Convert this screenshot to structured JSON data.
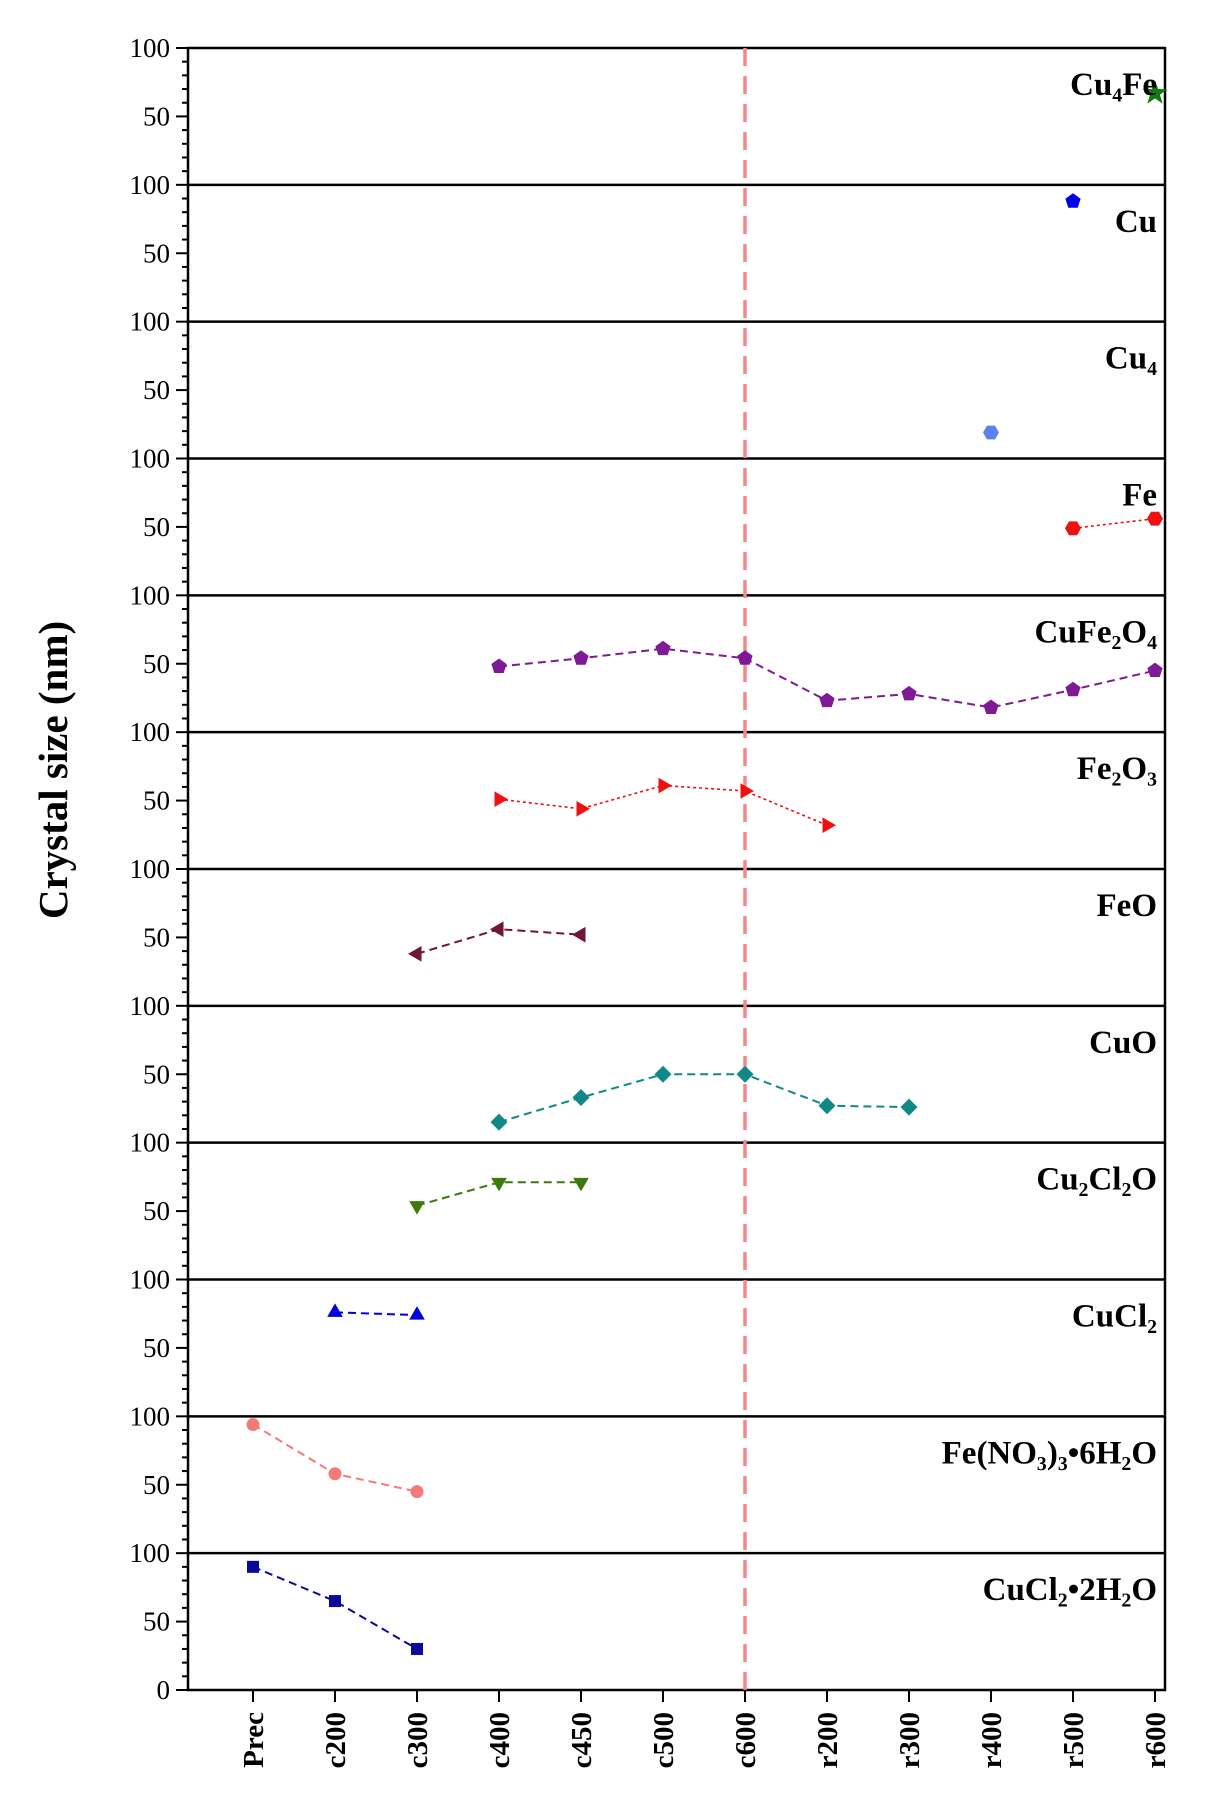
{
  "chart_data": {
    "type": "line",
    "title": "",
    "xlabel": "",
    "ylabel": "Crystal size (nm)",
    "categories": [
      "Prec",
      "c200",
      "c300",
      "c400",
      "c450",
      "c500",
      "c600",
      "r200",
      "r300",
      "r400",
      "r500",
      "r600"
    ],
    "panel_ylim": [
      0,
      100
    ],
    "panel_ticks": [
      50,
      100
    ],
    "bottom_tick": "0",
    "reference_line": {
      "category": "c600",
      "color": "#f4878a"
    },
    "series": [
      {
        "name": "Cu4Fe",
        "label": "Cu₄Fe",
        "color": "#0f7a0f",
        "marker": "star",
        "dash": "none",
        "points": [
          [
            "r600",
            67
          ]
        ]
      },
      {
        "name": "Cu",
        "label": "Cu",
        "color": "#0000ee",
        "marker": "pentagon",
        "dash": "none",
        "points": [
          [
            "r500",
            88
          ]
        ]
      },
      {
        "name": "Cu4",
        "label": "Cu₄",
        "color": "#5b82f0",
        "marker": "hexagon",
        "dash": "none",
        "points": [
          [
            "r400",
            19
          ]
        ]
      },
      {
        "name": "Fe",
        "label": "Fe",
        "color": "#ee1111",
        "marker": "hexagon",
        "dash": "dot",
        "points": [
          [
            "r500",
            49
          ],
          [
            "r600",
            56
          ]
        ]
      },
      {
        "name": "CuFe2O4",
        "label": "CuFe₂O₄",
        "color": "#7f1a96",
        "marker": "pentagon",
        "dash": "dash",
        "points": [
          [
            "c400",
            48
          ],
          [
            "c450",
            54
          ],
          [
            "c500",
            61
          ],
          [
            "c600",
            54
          ],
          [
            "r200",
            23
          ],
          [
            "r300",
            28
          ],
          [
            "r400",
            18
          ],
          [
            "r500",
            31
          ],
          [
            "r600",
            45
          ]
        ]
      },
      {
        "name": "Fe2O3",
        "label": "Fe₂O₃",
        "color": "#ee1111",
        "marker": "tri-right",
        "dash": "dot",
        "points": [
          [
            "c400",
            51
          ],
          [
            "c450",
            44
          ],
          [
            "c500",
            61
          ],
          [
            "c600",
            57
          ],
          [
            "r200",
            32
          ]
        ]
      },
      {
        "name": "FeO",
        "label": "FeO",
        "color": "#6e1538",
        "marker": "tri-left",
        "dash": "dash",
        "points": [
          [
            "c300",
            38
          ],
          [
            "c400",
            56
          ],
          [
            "c450",
            52
          ]
        ]
      },
      {
        "name": "CuO",
        "label": "CuO",
        "color": "#118888",
        "marker": "diamond",
        "dash": "dash",
        "points": [
          [
            "c400",
            15
          ],
          [
            "c450",
            33
          ],
          [
            "c500",
            50
          ],
          [
            "c600",
            50
          ],
          [
            "r200",
            27
          ],
          [
            "r300",
            26
          ]
        ]
      },
      {
        "name": "Cu2Cl2O",
        "label": "Cu₂Cl₂O",
        "color": "#3d7a0a",
        "marker": "tri-down",
        "dash": "dash",
        "points": [
          [
            "c300",
            54
          ],
          [
            "c400",
            71
          ],
          [
            "c450",
            71
          ]
        ]
      },
      {
        "name": "CuCl2",
        "label": "CuCl₂",
        "color": "#0000dd",
        "marker": "tri-up",
        "dash": "dash",
        "points": [
          [
            "c200",
            76
          ],
          [
            "c300",
            74
          ]
        ]
      },
      {
        "name": "Fe(NO3)3•6H2O",
        "label": "Fe(NO₃)₃•6H₂O",
        "color": "#f47a7a",
        "marker": "circle",
        "dash": "dash",
        "points": [
          [
            "Prec",
            94
          ],
          [
            "c200",
            58
          ],
          [
            "c300",
            45
          ]
        ]
      },
      {
        "name": "CuCl2•2H2O",
        "label": "CuCl₂•2H₂O",
        "color": "#0a0a96",
        "marker": "square",
        "dash": "dash",
        "points": [
          [
            "Prec",
            90
          ],
          [
            "c200",
            65
          ],
          [
            "c300",
            30
          ]
        ]
      }
    ]
  }
}
